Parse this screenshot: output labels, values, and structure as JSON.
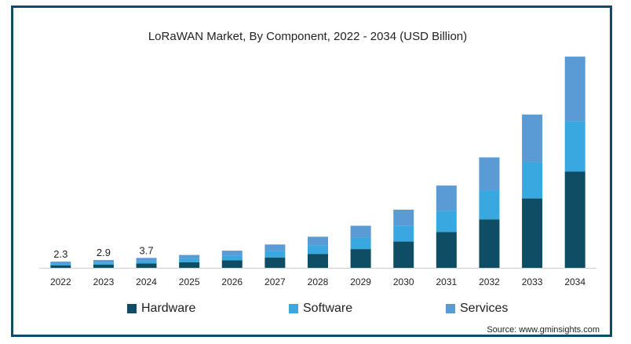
{
  "chart_data": {
    "type": "bar",
    "stacked": true,
    "title": "LoRaWAN Market, By Component, 2022 - 2034 (USD Billion)",
    "xlabel": "",
    "ylabel": "",
    "categories": [
      "2022",
      "2023",
      "2024",
      "2025",
      "2026",
      "2027",
      "2028",
      "2029",
      "2030",
      "2031",
      "2032",
      "2033",
      "2034"
    ],
    "series": [
      {
        "name": "Hardware",
        "color": "#0e4d64",
        "values": [
          0.9,
          1.2,
          1.6,
          2.1,
          2.8,
          3.8,
          5.2,
          7.0,
          9.8,
          13.4,
          18.1,
          25.9,
          35.9
        ]
      },
      {
        "name": "Software",
        "color": "#3aa8e0",
        "values": [
          0.7,
          0.8,
          1.0,
          1.3,
          1.7,
          2.4,
          3.2,
          4.3,
          5.8,
          7.8,
          10.9,
          13.5,
          18.8
        ]
      },
      {
        "name": "Services",
        "color": "#5b9bd5",
        "values": [
          0.7,
          0.9,
          1.1,
          1.4,
          1.9,
          2.5,
          3.2,
          4.4,
          6.1,
          9.5,
          12.2,
          17.8,
          24.1
        ]
      }
    ],
    "data_labels": [
      "2.3",
      "2.9",
      "3.7"
    ],
    "ylim": [
      0,
      80
    ],
    "grid": false,
    "legend_position": "bottom"
  },
  "source": "Source: www.gminsights.com"
}
